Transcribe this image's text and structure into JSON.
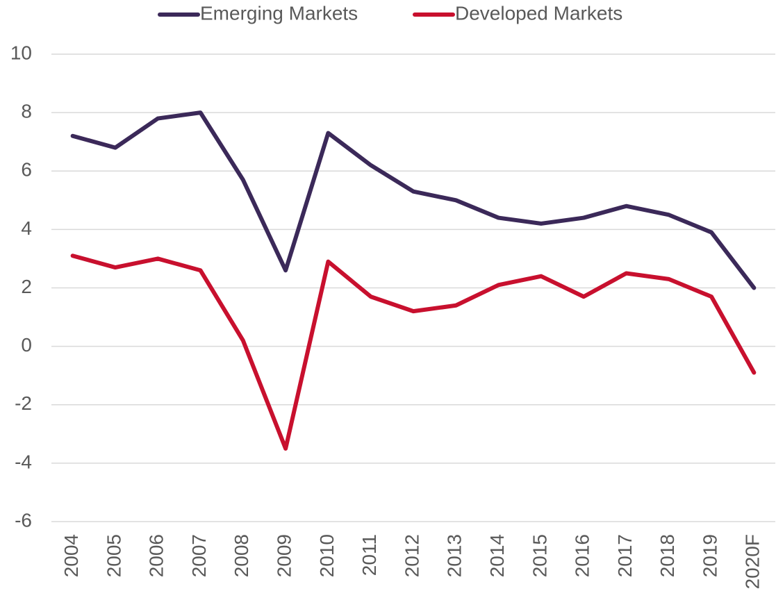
{
  "chart_data": {
    "type": "line",
    "categories": [
      "2004",
      "2005",
      "2006",
      "2007",
      "2008",
      "2009",
      "2010",
      "2011",
      "2012",
      "2013",
      "2014",
      "2015",
      "2016",
      "2017",
      "2018",
      "2019",
      "2020F"
    ],
    "series": [
      {
        "name": "Emerging Markets",
        "color": "#3b2959",
        "values": [
          7.2,
          6.8,
          7.8,
          8.0,
          5.7,
          2.6,
          7.3,
          6.2,
          5.3,
          5.0,
          4.4,
          4.2,
          4.4,
          4.8,
          4.5,
          3.9,
          2.0
        ]
      },
      {
        "name": "Developed Markets",
        "color": "#c8102e",
        "values": [
          3.1,
          2.7,
          3.0,
          2.6,
          0.2,
          -3.5,
          2.9,
          1.7,
          1.2,
          1.4,
          2.1,
          2.4,
          1.7,
          2.5,
          2.3,
          1.7,
          -0.9
        ]
      }
    ],
    "ylim": [
      -6,
      10
    ],
    "yticks": [
      -6,
      -4,
      -2,
      0,
      2,
      4,
      6,
      8,
      10
    ],
    "grid": true,
    "legend": "top"
  }
}
